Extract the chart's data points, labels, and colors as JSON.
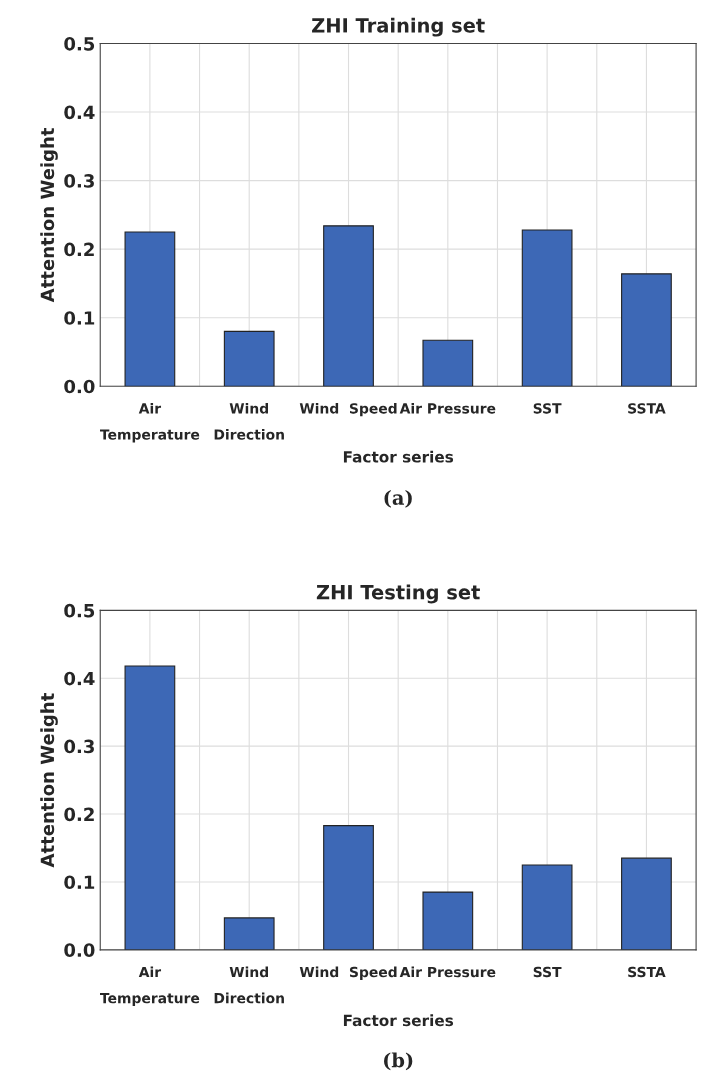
{
  "chart_data": [
    {
      "type": "bar",
      "title": "ZHI Training set",
      "xlabel": "Factor series",
      "ylabel": "Attention Weight",
      "categories": [
        "Air\nTemperature",
        "Wind\nDirection",
        "Wind  Speed",
        "Air Pressure",
        "SST",
        "SSTA"
      ],
      "values": [
        0.225,
        0.08,
        0.234,
        0.067,
        0.228,
        0.164
      ],
      "color": "#3d68b6",
      "ylim": [
        0,
        0.5
      ],
      "yticks": [
        {
          "value": 0,
          "label": "0.0"
        },
        0.1,
        0.2,
        0.3,
        0.4,
        0.5
      ],
      "grid": true,
      "annotations": [
        "(a)"
      ]
    },
    {
      "type": "bar",
      "title": "ZHI Testing set",
      "xlabel": "Factor series",
      "ylabel": "Attention Weight",
      "categories": [
        "Air\nTemperature",
        "Wind\nDirection",
        "Wind  Speed",
        "Air Pressure",
        "SST",
        "SSTA"
      ],
      "values": [
        0.418,
        0.047,
        0.183,
        0.085,
        0.125,
        0.135
      ],
      "color": "#3d68b6",
      "ylim": [
        0,
        0.5
      ],
      "yticks": [
        {
          "value": 0,
          "label": "0.0"
        },
        0.1,
        0.2,
        0.3,
        0.4,
        0.5
      ],
      "grid": true,
      "annotations": [
        "(b)"
      ]
    }
  ]
}
